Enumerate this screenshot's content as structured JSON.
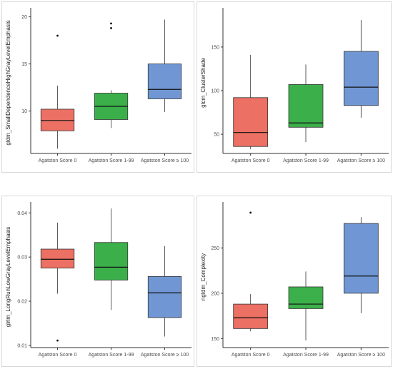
{
  "colors": {
    "score0": "#ec7063",
    "score1_99": "#3bb04a",
    "score100": "#7097d4"
  },
  "chart_data": [
    {
      "type": "box",
      "ylabel": "gldm_SmallDependenceHighGrayLevelEmphasis",
      "categories": [
        "Agatston Score 0",
        "Agatston Score 1-99",
        "Agatston Score ≥ 100"
      ],
      "ylim": [
        5.5,
        20.5
      ],
      "yticks": [
        10,
        15,
        20
      ],
      "boxes": [
        {
          "whisker_low": 6.0,
          "q1": 7.9,
          "median": 9.0,
          "q3": 10.2,
          "whisker_high": 12.7,
          "outliers": [
            18.0
          ]
        },
        {
          "whisker_low": 8.2,
          "q1": 9.1,
          "median": 10.5,
          "q3": 11.9,
          "whisker_high": 12.2,
          "outliers": [
            18.8,
            19.3
          ]
        },
        {
          "whisker_low": 9.9,
          "q1": 11.3,
          "median": 12.3,
          "q3": 15.0,
          "whisker_high": 19.7,
          "outliers": []
        }
      ]
    },
    {
      "type": "box",
      "ylabel": "glcm_ClusterShade",
      "categories": [
        "Agatston Score 0",
        "Agatston Score 1-99",
        "Agatston Score ≥ 100"
      ],
      "ylim": [
        28,
        190
      ],
      "yticks": [
        50,
        100,
        150
      ],
      "boxes": [
        {
          "whisker_low": 33,
          "q1": 36,
          "median": 52,
          "q3": 92,
          "whisker_high": 141,
          "outliers": []
        },
        {
          "whisker_low": 41,
          "q1": 58,
          "median": 63,
          "q3": 107,
          "whisker_high": 130,
          "outliers": []
        },
        {
          "whisker_low": 69,
          "q1": 83,
          "median": 104,
          "q3": 145,
          "whisker_high": 181,
          "outliers": []
        }
      ]
    },
    {
      "type": "box",
      "ylabel": "glrlm_LongRunLowGrayLevelEmphasis",
      "categories": [
        "Agatston Score 0",
        "Agatston Score 1-99",
        "Agatston Score ≥ 100"
      ],
      "ylim": [
        0.0095,
        0.0415
      ],
      "yticks": [
        0.01,
        0.02,
        0.03,
        0.04
      ],
      "ytick_labels": [
        "0.01",
        "0.02",
        "0.03",
        "0.04"
      ],
      "boxes": [
        {
          "whisker_low": 0.0217,
          "q1": 0.0275,
          "median": 0.0295,
          "q3": 0.0318,
          "whisker_high": 0.0378,
          "outliers": [
            0.0111
          ]
        },
        {
          "whisker_low": 0.018,
          "q1": 0.0248,
          "median": 0.0277,
          "q3": 0.0333,
          "whisker_high": 0.041,
          "outliers": []
        },
        {
          "whisker_low": 0.012,
          "q1": 0.0163,
          "median": 0.0219,
          "q3": 0.0256,
          "whisker_high": 0.0325,
          "outliers": []
        }
      ]
    },
    {
      "type": "box",
      "ylabel": "ngtdm_Complexity",
      "categories": [
        "Agatston Score 0",
        "Agatston Score 1-99",
        "Agatston Score ≥ 100"
      ],
      "ylim": [
        140,
        296
      ],
      "yticks": [
        150,
        200,
        250
      ],
      "boxes": [
        {
          "whisker_low": 158,
          "q1": 161,
          "median": 173,
          "q3": 188,
          "whisker_high": 199,
          "outliers": [
            289
          ]
        },
        {
          "whisker_low": 148,
          "q1": 183,
          "median": 188,
          "q3": 207,
          "whisker_high": 224,
          "outliers": []
        },
        {
          "whisker_low": 178,
          "q1": 200,
          "median": 219,
          "q3": 277,
          "whisker_high": 284,
          "outliers": []
        }
      ]
    }
  ]
}
